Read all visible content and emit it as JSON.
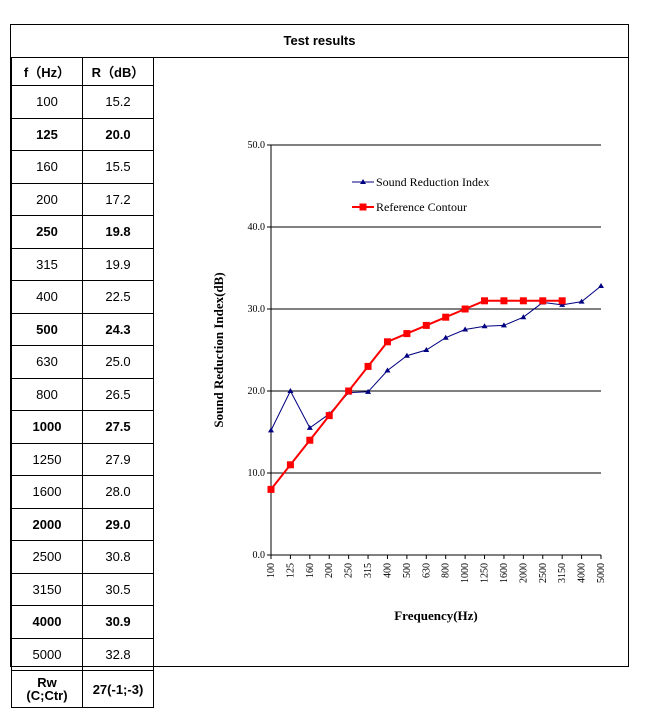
{
  "table": {
    "title": "Test results",
    "col_f": "f（Hz）",
    "col_r": "R（dB）",
    "rows": [
      {
        "f": "100",
        "r": "15.2",
        "bold": false
      },
      {
        "f": "125",
        "r": "20.0",
        "bold": true
      },
      {
        "f": "160",
        "r": "15.5",
        "bold": false
      },
      {
        "f": "200",
        "r": "17.2",
        "bold": false
      },
      {
        "f": "250",
        "r": "19.8",
        "bold": true
      },
      {
        "f": "315",
        "r": "19.9",
        "bold": false
      },
      {
        "f": "400",
        "r": "22.5",
        "bold": false
      },
      {
        "f": "500",
        "r": "24.3",
        "bold": true
      },
      {
        "f": "630",
        "r": "25.0",
        "bold": false
      },
      {
        "f": "800",
        "r": "26.5",
        "bold": false
      },
      {
        "f": "1000",
        "r": "27.5",
        "bold": true
      },
      {
        "f": "1250",
        "r": "27.9",
        "bold": false
      },
      {
        "f": "1600",
        "r": "28.0",
        "bold": false
      },
      {
        "f": "2000",
        "r": "29.0",
        "bold": true
      },
      {
        "f": "2500",
        "r": "30.8",
        "bold": false
      },
      {
        "f": "3150",
        "r": "30.5",
        "bold": false
      },
      {
        "f": "4000",
        "r": "30.9",
        "bold": true
      },
      {
        "f": "5000",
        "r": "32.8",
        "bold": false
      }
    ],
    "rw_label_1": "Rw",
    "rw_label_2": "(C;Ctr)",
    "rw_value": "27(-1;-3)"
  },
  "chart_data": {
    "type": "line",
    "categories": [
      "100",
      "125",
      "160",
      "200",
      "250",
      "315",
      "400",
      "500",
      "630",
      "800",
      "1000",
      "1250",
      "1600",
      "2000",
      "2500",
      "3150",
      "4000",
      "5000"
    ],
    "series": [
      {
        "name": "Sound Reduction Index",
        "color": "#000080",
        "marker": "triangle",
        "values": [
          15.2,
          20.0,
          15.5,
          17.2,
          19.8,
          19.9,
          22.5,
          24.3,
          25.0,
          26.5,
          27.5,
          27.9,
          28.0,
          29.0,
          30.8,
          30.5,
          30.9,
          32.8
        ]
      },
      {
        "name": "Reference Contour",
        "color": "#ff0000",
        "marker": "square",
        "values": [
          8,
          11,
          14,
          17,
          20,
          23,
          26,
          27,
          28,
          29,
          30,
          31,
          31,
          31,
          31,
          31,
          null,
          null
        ]
      }
    ],
    "xlabel": "Frequency(Hz)",
    "ylabel": "Sound Reduction Index(dB)",
    "ylim": [
      0,
      50
    ],
    "yticks": [
      "0.0",
      "10.0",
      "20.0",
      "30.0",
      "40.0",
      "50.0"
    ],
    "grid": true,
    "legend": "top-center"
  }
}
